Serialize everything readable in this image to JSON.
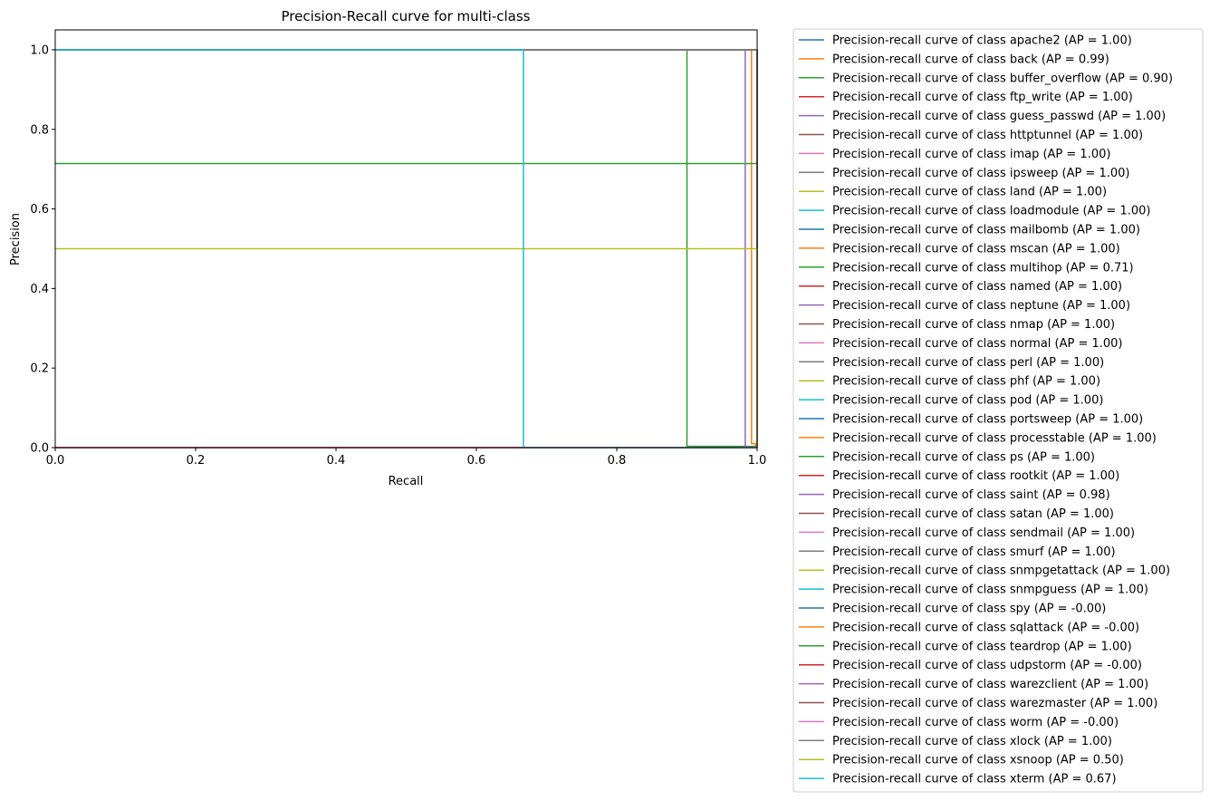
{
  "chart_data": {
    "type": "line",
    "title": "Precision-Recall curve for multi-class",
    "xlabel": "Recall",
    "ylabel": "Precision",
    "xlim": [
      0.0,
      1.0
    ],
    "ylim": [
      0.0,
      1.05
    ],
    "xticks": [
      "0.0",
      "0.2",
      "0.4",
      "0.6",
      "0.8",
      "1.0"
    ],
    "yticks": [
      "0.0",
      "0.2",
      "0.4",
      "0.6",
      "0.8",
      "1.0"
    ],
    "grid": false,
    "legend_placement": "outside-right",
    "palette": [
      "#1f77b4",
      "#ff7f0e",
      "#2ca02c",
      "#d62728",
      "#9467bd",
      "#8c564b",
      "#e377c2",
      "#7f7f7f",
      "#bcbd22",
      "#17becf"
    ],
    "series": [
      {
        "name": "Precision-recall curve of class apache2 (AP = 1.00)",
        "x": [
          0,
          1,
          1
        ],
        "y": [
          1,
          1,
          0
        ]
      },
      {
        "name": "Precision-recall curve of class back (AP = 0.99)",
        "x": [
          0,
          0.992,
          0.992,
          0.998,
          0.998,
          1
        ],
        "y": [
          1,
          1,
          0.01,
          0.01,
          0,
          0
        ]
      },
      {
        "name": "Precision-recall curve of class buffer_overflow (AP = 0.90)",
        "x": [
          0,
          0.9,
          0.9,
          1,
          1
        ],
        "y": [
          1,
          1,
          0.003,
          0.003,
          0
        ]
      },
      {
        "name": "Precision-recall curve of class ftp_write (AP = 1.00)",
        "x": [
          0,
          1,
          1
        ],
        "y": [
          1,
          1,
          0
        ]
      },
      {
        "name": "Precision-recall curve of class guess_passwd (AP = 1.00)",
        "x": [
          0,
          1,
          1
        ],
        "y": [
          1,
          1,
          0
        ]
      },
      {
        "name": "Precision-recall curve of class httptunnel (AP = 1.00)",
        "x": [
          0,
          1,
          1
        ],
        "y": [
          1,
          1,
          0
        ]
      },
      {
        "name": "Precision-recall curve of class imap (AP = 1.00)",
        "x": [
          0,
          1,
          1
        ],
        "y": [
          1,
          1,
          0
        ]
      },
      {
        "name": "Precision-recall curve of class ipsweep (AP = 1.00)",
        "x": [
          0,
          1,
          1
        ],
        "y": [
          1,
          1,
          0
        ]
      },
      {
        "name": "Precision-recall curve of class land (AP = 1.00)",
        "x": [
          0,
          1,
          1
        ],
        "y": [
          1,
          1,
          0
        ]
      },
      {
        "name": "Precision-recall curve of class loadmodule (AP = 1.00)",
        "x": [
          0,
          1,
          1
        ],
        "y": [
          1,
          1,
          0
        ]
      },
      {
        "name": "Precision-recall curve of class mailbomb (AP = 1.00)",
        "x": [
          0,
          1,
          1
        ],
        "y": [
          1,
          1,
          0
        ]
      },
      {
        "name": "Precision-recall curve of class mscan (AP = 1.00)",
        "x": [
          0,
          1,
          1
        ],
        "y": [
          1,
          1,
          0
        ]
      },
      {
        "name": "Precision-recall curve of class multihop (AP = 0.71)",
        "x": [
          0,
          1,
          1
        ],
        "y": [
          0.714,
          0.714,
          0
        ]
      },
      {
        "name": "Precision-recall curve of class named (AP = 1.00)",
        "x": [
          0,
          1,
          1
        ],
        "y": [
          1,
          1,
          0
        ]
      },
      {
        "name": "Precision-recall curve of class neptune (AP = 1.00)",
        "x": [
          0,
          1,
          1
        ],
        "y": [
          1,
          1,
          0
        ]
      },
      {
        "name": "Precision-recall curve of class nmap (AP = 1.00)",
        "x": [
          0,
          1,
          1
        ],
        "y": [
          1,
          1,
          0
        ]
      },
      {
        "name": "Precision-recall curve of class normal (AP = 1.00)",
        "x": [
          0,
          1,
          1
        ],
        "y": [
          1,
          1,
          0
        ]
      },
      {
        "name": "Precision-recall curve of class perl (AP = 1.00)",
        "x": [
          0,
          1,
          1
        ],
        "y": [
          1,
          1,
          0
        ]
      },
      {
        "name": "Precision-recall curve of class phf (AP = 1.00)",
        "x": [
          0,
          1,
          1
        ],
        "y": [
          1,
          1,
          0
        ]
      },
      {
        "name": "Precision-recall curve of class pod (AP = 1.00)",
        "x": [
          0,
          1,
          1
        ],
        "y": [
          1,
          1,
          0
        ]
      },
      {
        "name": "Precision-recall curve of class portsweep (AP = 1.00)",
        "x": [
          0,
          1,
          1
        ],
        "y": [
          1,
          1,
          0
        ]
      },
      {
        "name": "Precision-recall curve of class processtable (AP = 1.00)",
        "x": [
          0,
          1,
          1
        ],
        "y": [
          1,
          1,
          0
        ]
      },
      {
        "name": "Precision-recall curve of class ps (AP = 1.00)",
        "x": [
          0,
          1,
          1
        ],
        "y": [
          1,
          1,
          0
        ]
      },
      {
        "name": "Precision-recall curve of class rootkit (AP = 1.00)",
        "x": [
          0,
          1,
          1
        ],
        "y": [
          1,
          1,
          0
        ]
      },
      {
        "name": "Precision-recall curve of class saint (AP = 0.98)",
        "x": [
          0,
          0.983,
          0.983,
          1,
          1
        ],
        "y": [
          1,
          1,
          0.001,
          0.001,
          0
        ]
      },
      {
        "name": "Precision-recall curve of class satan (AP = 1.00)",
        "x": [
          0,
          1,
          1
        ],
        "y": [
          1,
          1,
          0
        ]
      },
      {
        "name": "Precision-recall curve of class sendmail (AP = 1.00)",
        "x": [
          0,
          1,
          1
        ],
        "y": [
          1,
          1,
          0
        ]
      },
      {
        "name": "Precision-recall curve of class smurf (AP = 1.00)",
        "x": [
          0,
          1,
          1
        ],
        "y": [
          1,
          1,
          0
        ]
      },
      {
        "name": "Precision-recall curve of class snmpgetattack (AP = 1.00)",
        "x": [
          0,
          1,
          1
        ],
        "y": [
          1,
          1,
          0
        ]
      },
      {
        "name": "Precision-recall curve of class snmpguess (AP = 1.00)",
        "x": [
          0,
          1,
          1
        ],
        "y": [
          1,
          1,
          0
        ]
      },
      {
        "name": "Precision-recall curve of class spy (AP = -0.00)",
        "x": [
          0,
          1
        ],
        "y": [
          0,
          0
        ]
      },
      {
        "name": "Precision-recall curve of class sqlattack (AP = -0.00)",
        "x": [
          0,
          1
        ],
        "y": [
          0,
          0
        ]
      },
      {
        "name": "Precision-recall curve of class teardrop (AP = 1.00)",
        "x": [
          0,
          1,
          1
        ],
        "y": [
          1,
          1,
          0
        ]
      },
      {
        "name": "Precision-recall curve of class udpstorm (AP = -0.00)",
        "x": [
          0,
          1
        ],
        "y": [
          0,
          0
        ]
      },
      {
        "name": "Precision-recall curve of class warezclient (AP = 1.00)",
        "x": [
          0,
          1,
          1
        ],
        "y": [
          1,
          1,
          0
        ]
      },
      {
        "name": "Precision-recall curve of class warezmaster (AP = 1.00)",
        "x": [
          0,
          1,
          1
        ],
        "y": [
          1,
          1,
          0
        ]
      },
      {
        "name": "Precision-recall curve of class worm (AP = -0.00)",
        "x": [
          0,
          1
        ],
        "y": [
          0,
          0
        ]
      },
      {
        "name": "Precision-recall curve of class xlock (AP = 1.00)",
        "x": [
          0,
          1,
          1
        ],
        "y": [
          1,
          1,
          0
        ]
      },
      {
        "name": "Precision-recall curve of class xsnoop (AP = 0.50)",
        "x": [
          0,
          1,
          1
        ],
        "y": [
          0.5,
          0.5,
          0
        ]
      },
      {
        "name": "Precision-recall curve of class xterm (AP = 0.67)",
        "x": [
          0,
          0.667,
          0.667,
          1,
          1
        ],
        "y": [
          1,
          1,
          0,
          0,
          0
        ]
      }
    ]
  }
}
